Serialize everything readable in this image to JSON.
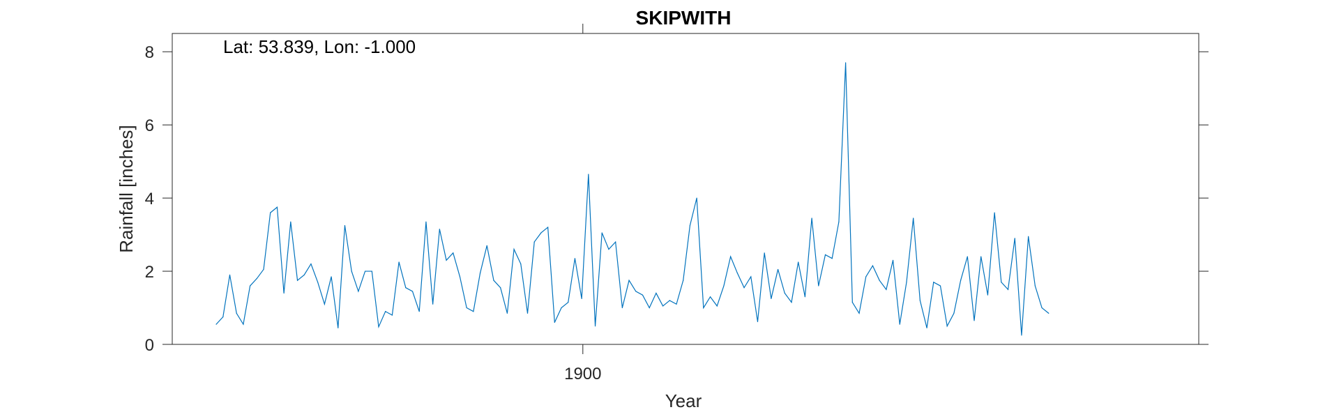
{
  "chart_data": {
    "type": "line",
    "title": "SKIPWITH",
    "xlabel": "Year",
    "ylabel": "Rainfall [inches]",
    "annotation": "Lat: 53.839, Lon: -1.000",
    "xlim": [
      1872,
      1942
    ],
    "ylim": [
      0,
      8.5
    ],
    "x_ticks": [
      1900
    ],
    "x_tick_labels": [
      "1900"
    ],
    "y_ticks": [
      0,
      2,
      4,
      6,
      8
    ],
    "y_tick_labels": [
      "0",
      "2",
      "4",
      "6",
      "8"
    ],
    "grid": false,
    "legend": "none",
    "x_start": 1875,
    "x_step": 0.4615,
    "series": [
      {
        "color": "#0072BD",
        "values": [
          0.55,
          0.75,
          1.9,
          0.85,
          0.55,
          1.6,
          1.8,
          2.05,
          3.6,
          3.75,
          1.4,
          3.35,
          1.75,
          1.9,
          2.2,
          1.7,
          1.1,
          1.85,
          0.45,
          3.25,
          2.0,
          1.45,
          2.0,
          2.0,
          0.48,
          0.9,
          0.8,
          2.25,
          1.55,
          1.45,
          0.9,
          3.35,
          1.1,
          3.15,
          2.3,
          2.5,
          1.85,
          1.0,
          0.9,
          1.95,
          2.7,
          1.75,
          1.55,
          0.85,
          2.6,
          2.2,
          0.85,
          2.8,
          3.05,
          3.2,
          0.6,
          1.0,
          1.15,
          2.35,
          1.25,
          4.65,
          0.5,
          3.05,
          2.6,
          2.8,
          1.0,
          1.75,
          1.45,
          1.35,
          1.0,
          1.4,
          1.05,
          1.2,
          1.1,
          1.75,
          3.25,
          4.0,
          1.0,
          1.3,
          1.05,
          1.6,
          2.4,
          1.95,
          1.55,
          1.85,
          0.62,
          2.5,
          1.25,
          2.05,
          1.4,
          1.15,
          2.25,
          1.3,
          3.45,
          1.6,
          2.45,
          2.35,
          3.35,
          7.7,
          1.15,
          0.85,
          1.85,
          2.15,
          1.75,
          1.5,
          2.3,
          0.55,
          1.7,
          3.45,
          1.2,
          0.45,
          1.7,
          1.6,
          0.5,
          0.85,
          1.75,
          2.4,
          0.65,
          2.4,
          1.35,
          3.6,
          1.7,
          1.5,
          2.9,
          0.25,
          2.95,
          1.6,
          1.0,
          0.85
        ]
      }
    ]
  }
}
